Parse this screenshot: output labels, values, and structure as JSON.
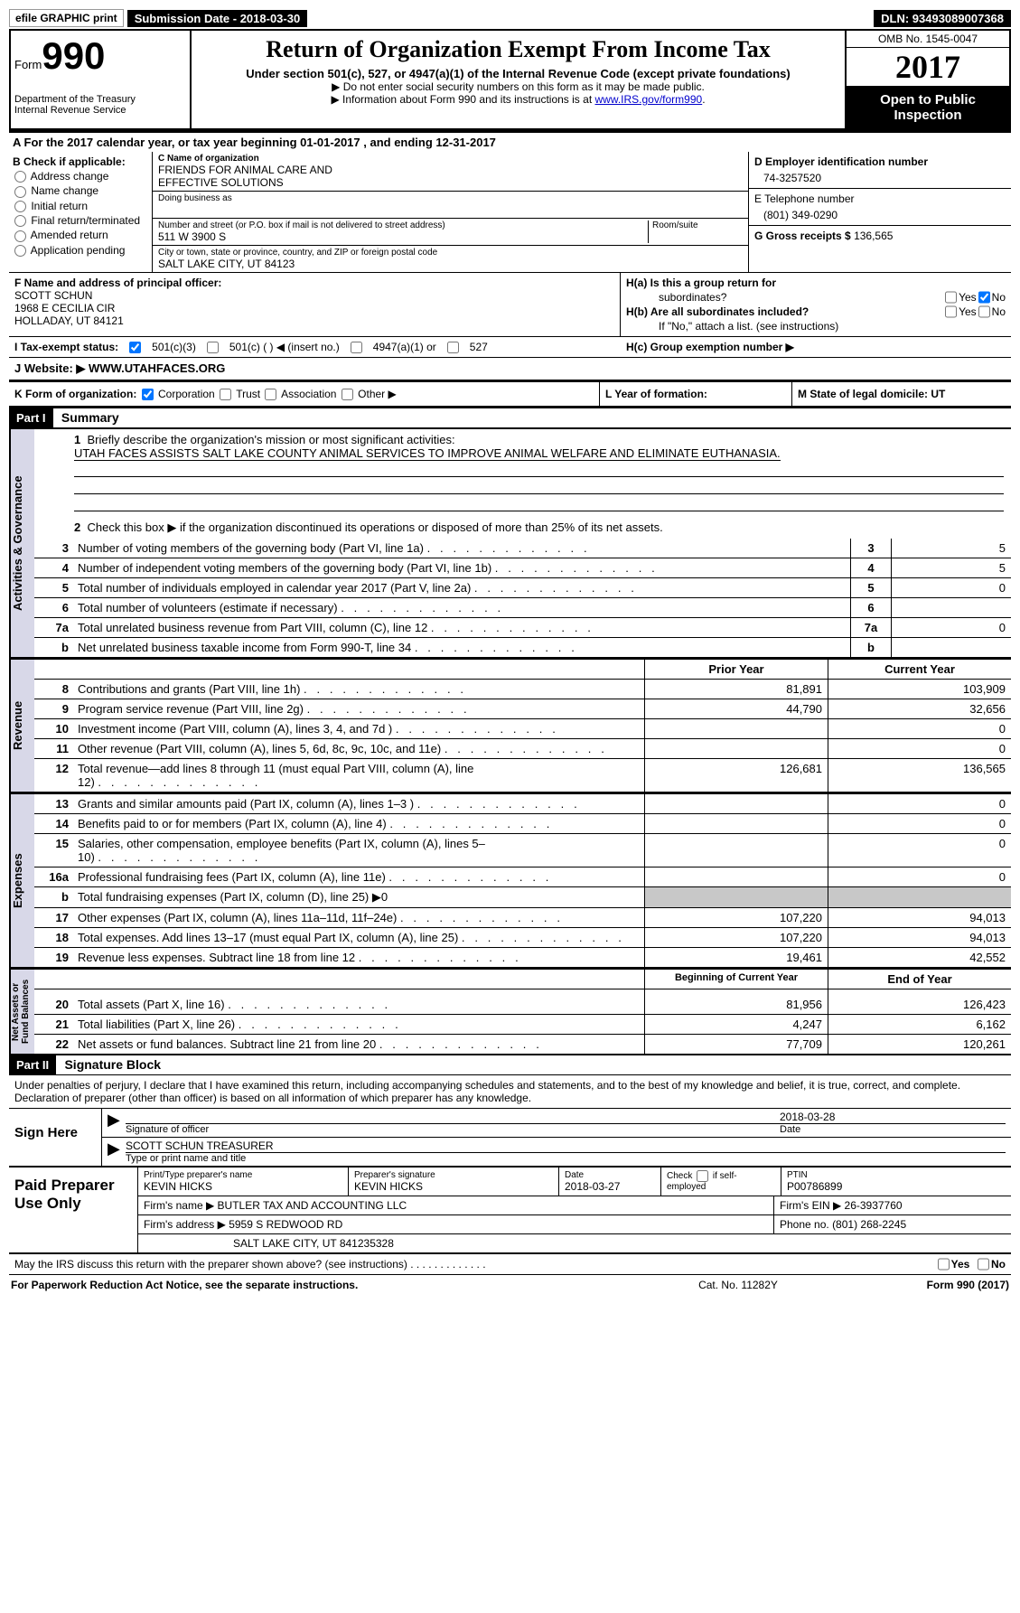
{
  "topbar": {
    "efile": "efile GRAPHIC print",
    "submission": "Submission Date - 2018-03-30",
    "dln": "DLN: 93493089007368"
  },
  "header": {
    "form_word": "Form",
    "form_num": "990",
    "dept1": "Department of the Treasury",
    "dept2": "Internal Revenue Service",
    "title": "Return of Organization Exempt From Income Tax",
    "subtitle": "Under section 501(c), 527, or 4947(a)(1) of the Internal Revenue Code (except private foundations)",
    "note1": "▶ Do not enter social security numbers on this form as it may be made public.",
    "note2_pre": "▶ Information about Form 990 and its instructions is at ",
    "note2_link": "www.IRS.gov/form990",
    "omb": "OMB No. 1545-0047",
    "year": "2017",
    "open1": "Open to Public",
    "open2": "Inspection"
  },
  "A": "A  For the 2017 calendar year, or tax year beginning 01-01-2017   , and ending 12-31-2017",
  "B": {
    "label": "B Check if applicable:",
    "opts": [
      "Address change",
      "Name change",
      "Initial return",
      "Final return/terminated",
      "Amended return",
      "Application pending"
    ]
  },
  "C": {
    "name_label": "C Name of organization",
    "name1": "FRIENDS FOR ANIMAL CARE AND",
    "name2": "EFFECTIVE SOLUTIONS",
    "dba_label": "Doing business as",
    "street_label": "Number and street (or P.O. box if mail is not delivered to street address)",
    "room_label": "Room/suite",
    "street": "511 W 3900 S",
    "city_label": "City or town, state or province, country, and ZIP or foreign postal code",
    "city": "SALT LAKE CITY, UT  84123"
  },
  "D": {
    "ein_label": "D Employer identification number",
    "ein": "74-3257520",
    "phone_label": "E Telephone number",
    "phone": "(801) 349-0290",
    "gross_label": "G Gross receipts $ ",
    "gross": "136,565"
  },
  "F": {
    "label": "F  Name and address of principal officer:",
    "l1": "SCOTT SCHUN",
    "l2": "1968 E CECILIA CIR",
    "l3": "HOLLADAY, UT  84121"
  },
  "H": {
    "a": "H(a)  Is this a group return for",
    "a2": "subordinates?",
    "b": "H(b)  Are all subordinates included?",
    "b2": "If \"No,\" attach a list. (see instructions)",
    "c": "H(c)  Group exemption number ▶",
    "yes": "Yes",
    "no": "No"
  },
  "I": {
    "label": "I  Tax-exempt status:",
    "o1": "501(c)(3)",
    "o2": "501(c) (   ) ◀ (insert no.)",
    "o3": "4947(a)(1) or",
    "o4": "527"
  },
  "J": {
    "label": "J  Website: ▶",
    "url": " WWW.UTAHFACES.ORG"
  },
  "K": {
    "label": "K Form of organization:",
    "opts": [
      "Corporation",
      "Trust",
      "Association",
      "Other ▶"
    ]
  },
  "L": "L Year of formation:",
  "M": "M State of legal domicile: UT",
  "part1": {
    "header": "Part I",
    "title": "Summary",
    "q1": "Briefly describe the organization's mission or most significant activities:",
    "mission": "UTAH FACES ASSISTS SALT LAKE COUNTY ANIMAL SERVICES TO IMPROVE ANIMAL WELFARE AND ELIMINATE EUTHANASIA.",
    "q2": "Check this box ▶        if the organization discontinued its operations or disposed of more than 25% of its net assets.",
    "gov_lines": [
      {
        "n": "3",
        "t": "Number of voting members of the governing body (Part VI, line 1a)",
        "v": "5"
      },
      {
        "n": "4",
        "t": "Number of independent voting members of the governing body (Part VI, line 1b)",
        "v": "5"
      },
      {
        "n": "5",
        "t": "Total number of individuals employed in calendar year 2017 (Part V, line 2a)",
        "v": "0"
      },
      {
        "n": "6",
        "t": "Total number of volunteers (estimate if necessary)",
        "v": ""
      },
      {
        "n": "7a",
        "t": "Total unrelated business revenue from Part VIII, column (C), line 12",
        "v": "0"
      },
      {
        "n": "b",
        "t": "Net unrelated business taxable income from Form 990-T, line 34",
        "v": ""
      }
    ],
    "col1": "Prior Year",
    "col2": "Current Year",
    "rev_lines": [
      {
        "n": "8",
        "t": "Contributions and grants (Part VIII, line 1h)",
        "p": "81,891",
        "c": "103,909"
      },
      {
        "n": "9",
        "t": "Program service revenue (Part VIII, line 2g)",
        "p": "44,790",
        "c": "32,656"
      },
      {
        "n": "10",
        "t": "Investment income (Part VIII, column (A), lines 3, 4, and 7d )",
        "p": "",
        "c": "0"
      },
      {
        "n": "11",
        "t": "Other revenue (Part VIII, column (A), lines 5, 6d, 8c, 9c, 10c, and 11e)",
        "p": "",
        "c": "0"
      },
      {
        "n": "12",
        "t": "Total revenue—add lines 8 through 11 (must equal Part VIII, column (A), line 12)",
        "p": "126,681",
        "c": "136,565"
      }
    ],
    "exp_lines": [
      {
        "n": "13",
        "t": "Grants and similar amounts paid (Part IX, column (A), lines 1–3 )",
        "p": "",
        "c": "0"
      },
      {
        "n": "14",
        "t": "Benefits paid to or for members (Part IX, column (A), line 4)",
        "p": "",
        "c": "0"
      },
      {
        "n": "15",
        "t": "Salaries, other compensation, employee benefits (Part IX, column (A), lines 5–10)",
        "p": "",
        "c": "0"
      },
      {
        "n": "16a",
        "t": "Professional fundraising fees (Part IX, column (A), line 11e)",
        "p": "",
        "c": "0"
      },
      {
        "n": "b",
        "t": "Total fundraising expenses (Part IX, column (D), line 25) ▶0",
        "p": "grey",
        "c": "grey"
      },
      {
        "n": "17",
        "t": "Other expenses (Part IX, column (A), lines 11a–11d, 11f–24e)",
        "p": "107,220",
        "c": "94,013"
      },
      {
        "n": "18",
        "t": "Total expenses. Add lines 13–17 (must equal Part IX, column (A), line 25)",
        "p": "107,220",
        "c": "94,013"
      },
      {
        "n": "19",
        "t": "Revenue less expenses. Subtract line 18 from line 12",
        "p": "19,461",
        "c": "42,552"
      }
    ],
    "na_col1": "Beginning of Current Year",
    "na_col2": "End of Year",
    "na_lines": [
      {
        "n": "20",
        "t": "Total assets (Part X, line 16)",
        "p": "81,956",
        "c": "126,423"
      },
      {
        "n": "21",
        "t": "Total liabilities (Part X, line 26)",
        "p": "4,247",
        "c": "6,162"
      },
      {
        "n": "22",
        "t": "Net assets or fund balances. Subtract line 21 from line 20",
        "p": "77,709",
        "c": "120,261"
      }
    ]
  },
  "part2": {
    "header": "Part II",
    "title": "Signature Block",
    "decl": "Under penalties of perjury, I declare that I have examined this return, including accompanying schedules and statements, and to the best of my knowledge and belief, it is true, correct, and complete. Declaration of preparer (other than officer) is based on all information of which preparer has any knowledge.",
    "sign_here": "Sign Here",
    "sig_officer": "Signature of officer",
    "sig_date": "2018-03-28",
    "date_label": "Date",
    "name_title": "SCOTT SCHUN TREASURER",
    "name_label": "Type or print name and title",
    "paid": "Paid Preparer Use Only",
    "prep_name_label": "Print/Type preparer's name",
    "prep_name": "KEVIN HICKS",
    "prep_sig_label": "Preparer's signature",
    "prep_sig": "KEVIN HICKS",
    "prep_date_label": "Date",
    "prep_date": "2018-03-27",
    "check_self": "Check        if self-employed",
    "ptin_label": "PTIN",
    "ptin": "P00786899",
    "firm_name_label": "Firm's name    ▶ ",
    "firm_name": "BUTLER TAX AND ACCOUNTING LLC",
    "firm_ein_label": "Firm's EIN ▶ ",
    "firm_ein": "26-3937760",
    "firm_addr_label": "Firm's address ▶ ",
    "firm_addr1": "5959 S REDWOOD RD",
    "firm_addr2": "SALT LAKE CITY, UT  841235328",
    "firm_phone_label": "Phone no. ",
    "firm_phone": "(801) 268-2245",
    "discuss": "May the IRS discuss this return with the preparer shown above? (see instructions)"
  },
  "footer": {
    "left": "For Paperwork Reduction Act Notice, see the separate instructions.",
    "mid": "Cat. No. 11282Y",
    "right_form": "Form ",
    "right_990": "990",
    "right_year": " (2017)"
  }
}
